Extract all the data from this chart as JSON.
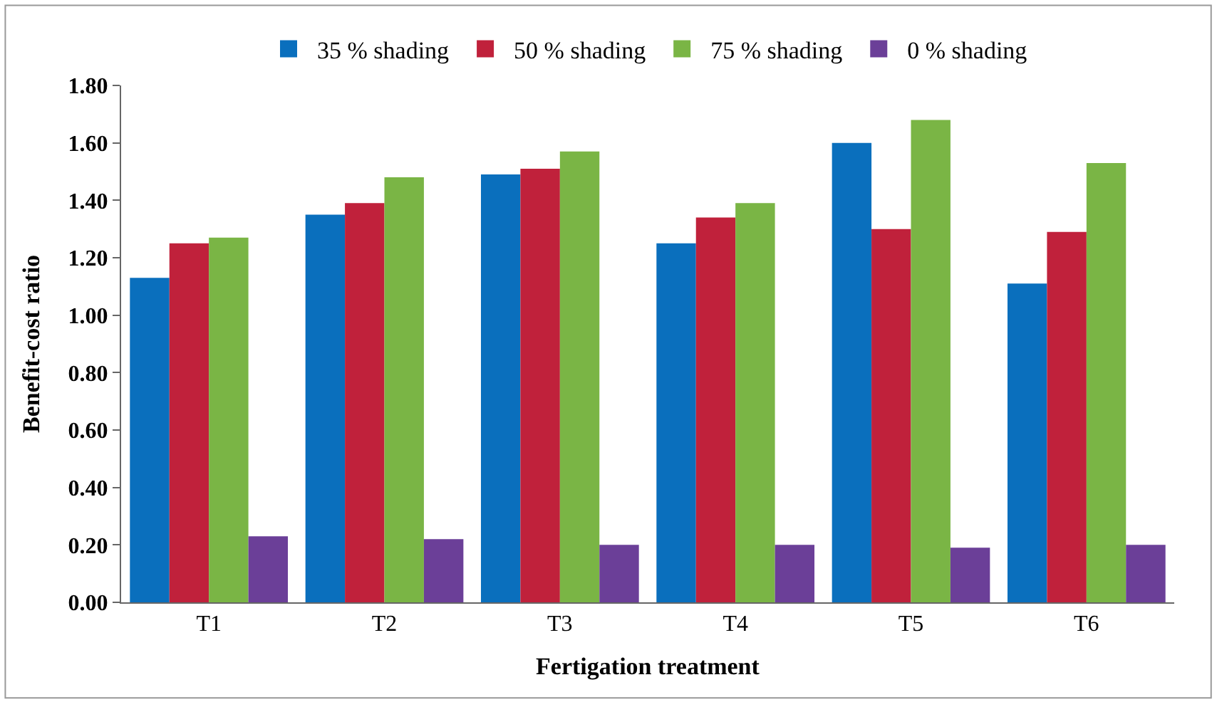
{
  "chart_data": {
    "type": "bar",
    "xlabel": "Fertigation treatment",
    "ylabel": "Benefit-cost ratio",
    "categories": [
      "T1",
      "T2",
      "T3",
      "T4",
      "T5",
      "T6"
    ],
    "series": [
      {
        "name": "35 % shading",
        "color": "#0a6fbd",
        "values": [
          1.13,
          1.35,
          1.49,
          1.25,
          1.6,
          1.11
        ]
      },
      {
        "name": "50 % shading",
        "color": "#c0213b",
        "values": [
          1.25,
          1.39,
          1.51,
          1.34,
          1.3,
          1.29
        ]
      },
      {
        "name": "75 % shading",
        "color": "#7ab545",
        "values": [
          1.27,
          1.48,
          1.57,
          1.39,
          1.68,
          1.53
        ]
      },
      {
        "name": "0 % shading",
        "color": "#6b3f98",
        "values": [
          0.23,
          0.22,
          0.2,
          0.2,
          0.19,
          0.2
        ]
      }
    ],
    "ylim": [
      0,
      1.8
    ],
    "yticks": [
      {
        "value": 0,
        "label": "0.00"
      },
      {
        "value": 0.2,
        "label": "0.20"
      },
      {
        "value": 0.4,
        "label": "0.40"
      },
      {
        "value": 0.6,
        "label": "0.60"
      },
      {
        "value": 0.8,
        "label": "0.80"
      },
      {
        "value": 1,
        "label": "1.00"
      },
      {
        "value": 1.2,
        "label": "1.20"
      },
      {
        "value": 1.4,
        "label": "1.40"
      },
      {
        "value": 1.6,
        "label": "1.60"
      },
      {
        "value": 1.8,
        "label": "1.80"
      }
    ],
    "legend": "top"
  }
}
